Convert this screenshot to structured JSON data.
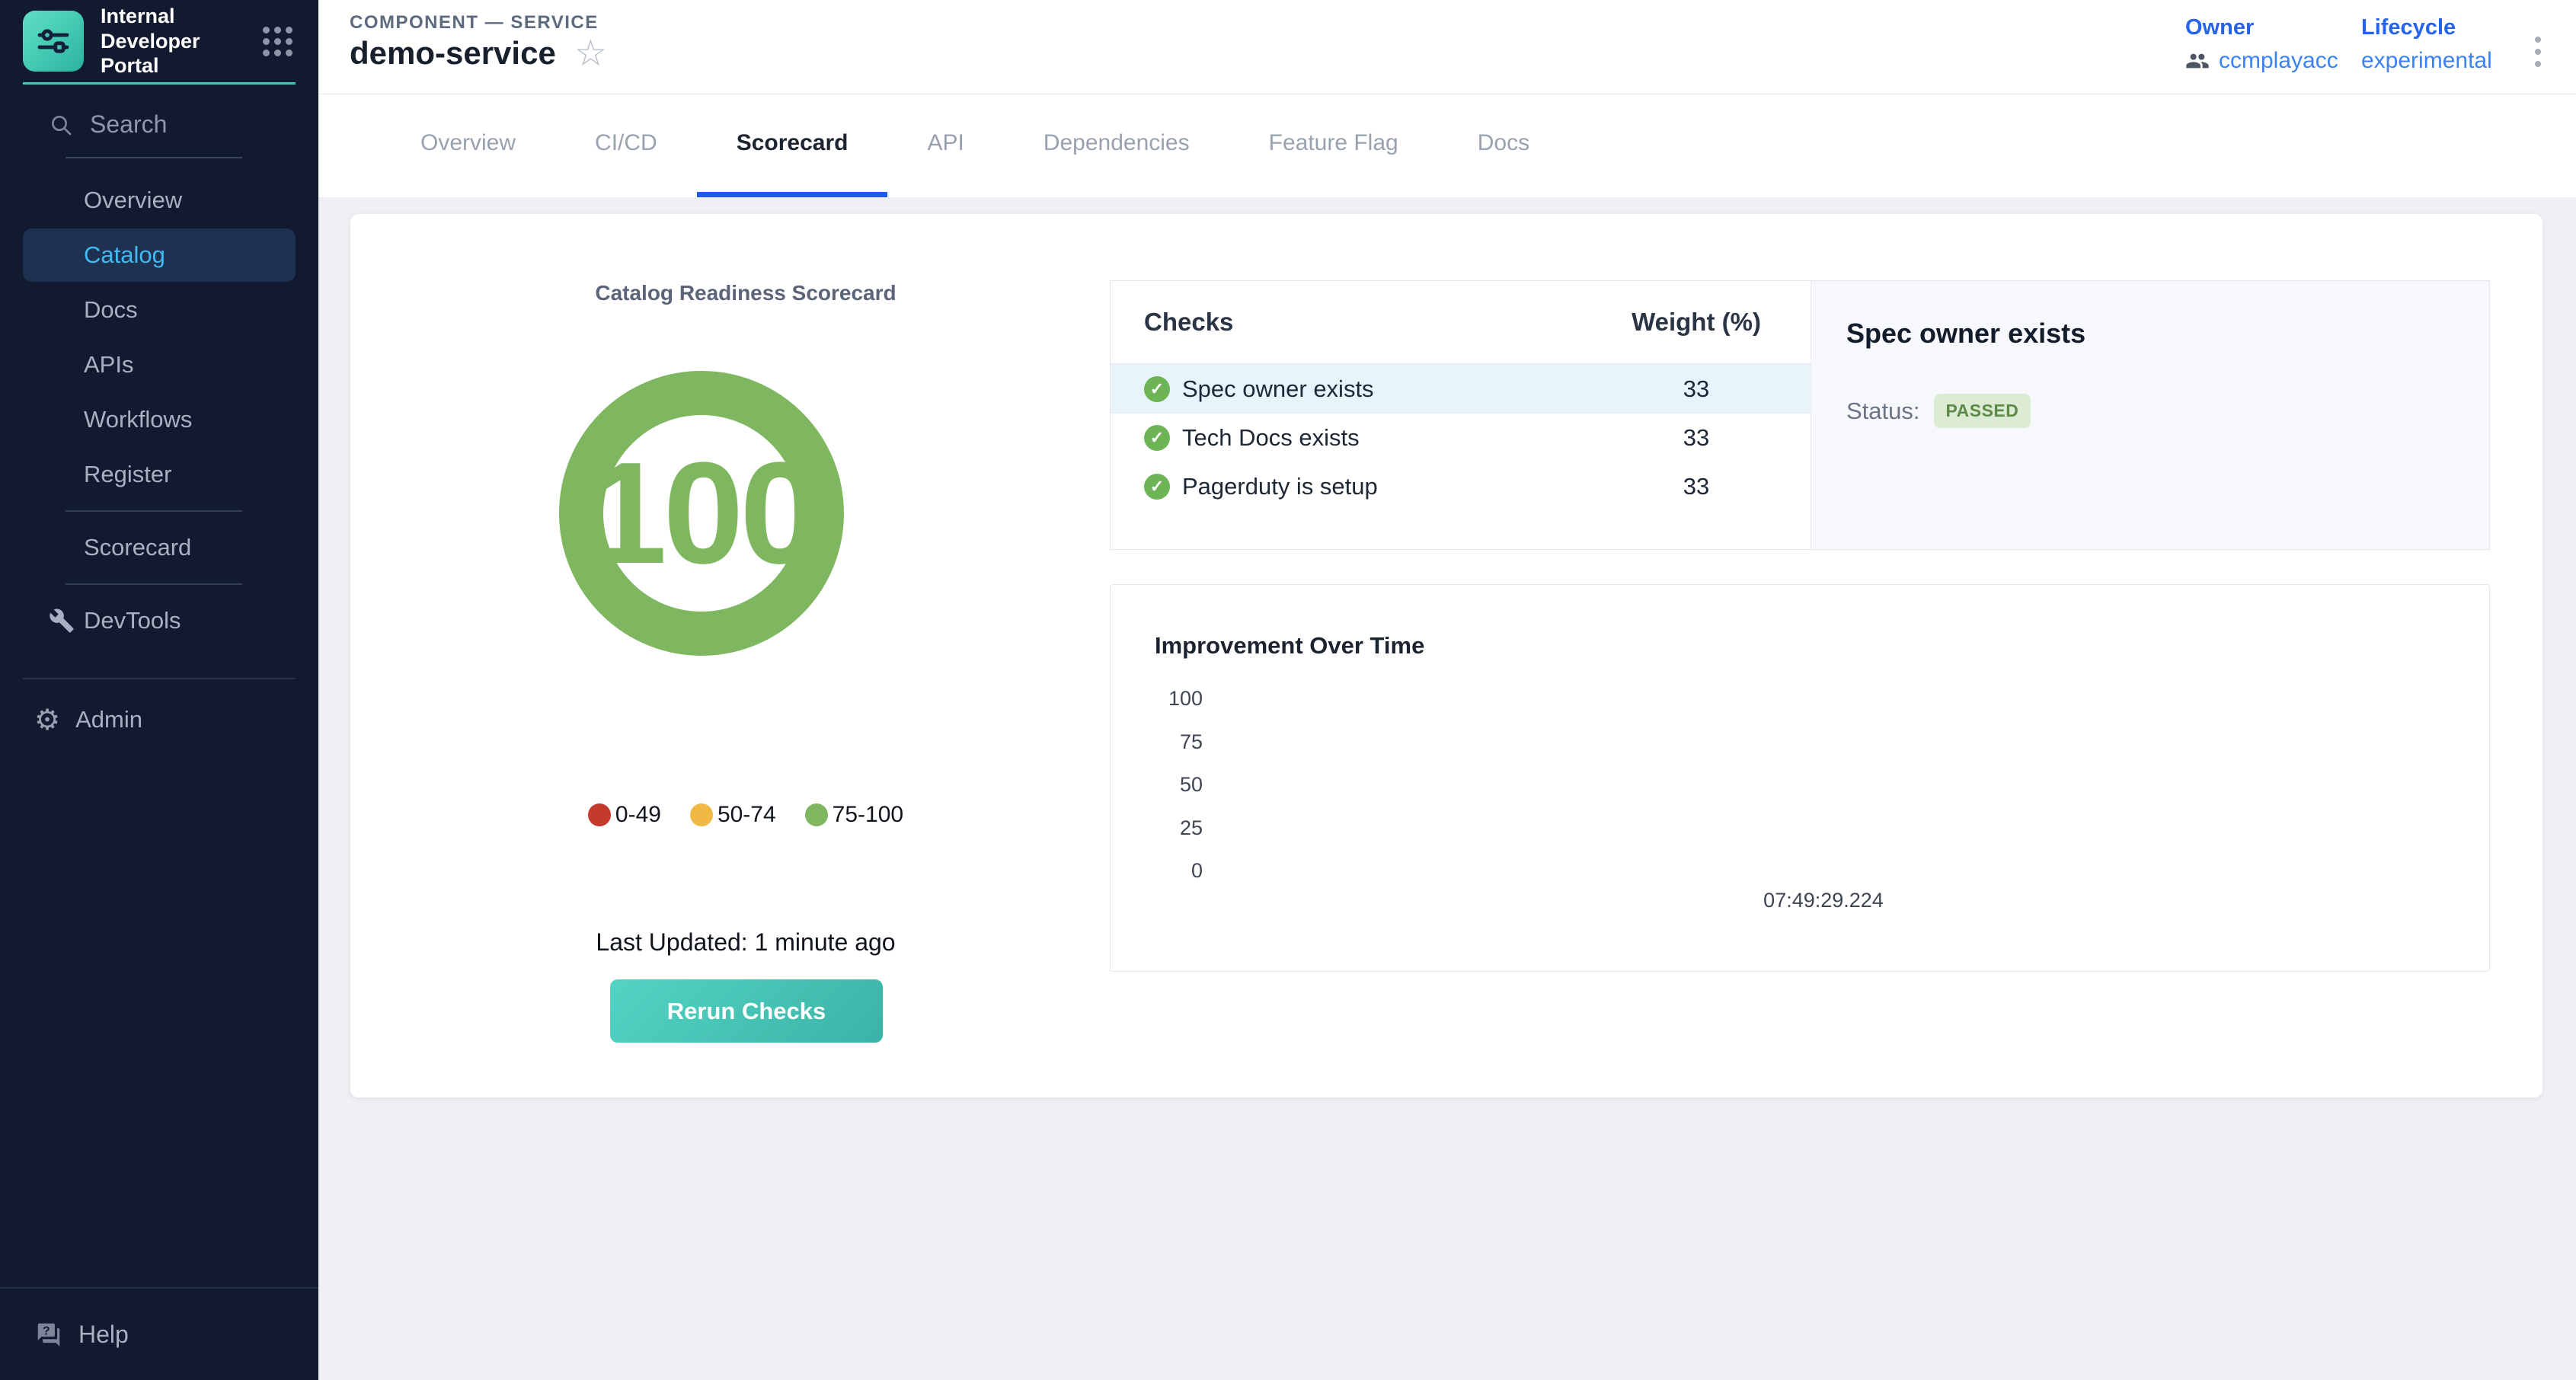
{
  "app": {
    "title": "Internal Developer Portal"
  },
  "sidebar": {
    "search_label": "Search",
    "nav": [
      {
        "label": "Overview",
        "active": false,
        "icon": null,
        "divider_after": false
      },
      {
        "label": "Catalog",
        "active": true,
        "icon": null,
        "divider_after": false
      },
      {
        "label": "Docs",
        "active": false,
        "icon": null,
        "divider_after": false
      },
      {
        "label": "APIs",
        "active": false,
        "icon": null,
        "divider_after": false
      },
      {
        "label": "Workflows",
        "active": false,
        "icon": null,
        "divider_after": false
      },
      {
        "label": "Register",
        "active": false,
        "icon": null,
        "divider_after": true
      },
      {
        "label": "Scorecard",
        "active": false,
        "icon": null,
        "divider_after": true
      },
      {
        "label": "DevTools",
        "active": false,
        "icon": "wrench",
        "divider_after": false
      }
    ],
    "admin_label": "Admin",
    "help_label": "Help"
  },
  "header": {
    "breadcrumb": "COMPONENT — SERVICE",
    "title": "demo-service",
    "owner": {
      "label": "Owner",
      "value": "ccmplayacc"
    },
    "lifecycle": {
      "label": "Lifecycle",
      "value": "experimental"
    }
  },
  "tabs": [
    {
      "label": "Overview",
      "active": false
    },
    {
      "label": "CI/CD",
      "active": false
    },
    {
      "label": "Scorecard",
      "active": true
    },
    {
      "label": "API",
      "active": false
    },
    {
      "label": "Dependencies",
      "active": false
    },
    {
      "label": "Feature Flag",
      "active": false
    },
    {
      "label": "Docs",
      "active": false
    }
  ],
  "scorecard": {
    "gauge_title": "Catalog Readiness Scorecard",
    "score": "100",
    "score_color": "#7eb760",
    "legend": [
      {
        "label": "0-49",
        "color": "#c43b2e"
      },
      {
        "label": "50-74",
        "color": "#f0b944"
      },
      {
        "label": "75-100",
        "color": "#7eb760"
      }
    ],
    "last_updated": "Last Updated: 1 minute ago",
    "rerun_button": "Rerun Checks",
    "checks_table": {
      "col_checks": "Checks",
      "col_weight": "Weight (%)",
      "rows": [
        {
          "name": "Spec owner exists",
          "weight": "33",
          "status": "passed",
          "selected": true
        },
        {
          "name": "Tech Docs exists",
          "weight": "33",
          "status": "passed",
          "selected": false
        },
        {
          "name": "Pagerduty is setup",
          "weight": "33",
          "status": "passed",
          "selected": false
        }
      ]
    },
    "detail": {
      "title": "Spec owner exists",
      "status_label": "Status:",
      "status_value": "PASSED"
    },
    "improvement_chart": {
      "type": "line",
      "title": "Improvement Over Time",
      "y_ticks": [
        "100",
        "75",
        "50",
        "25",
        "0"
      ],
      "x_ticks": [
        "07:49:29.224"
      ],
      "ylim": [
        0,
        100
      ],
      "grid": false,
      "series": []
    }
  }
}
